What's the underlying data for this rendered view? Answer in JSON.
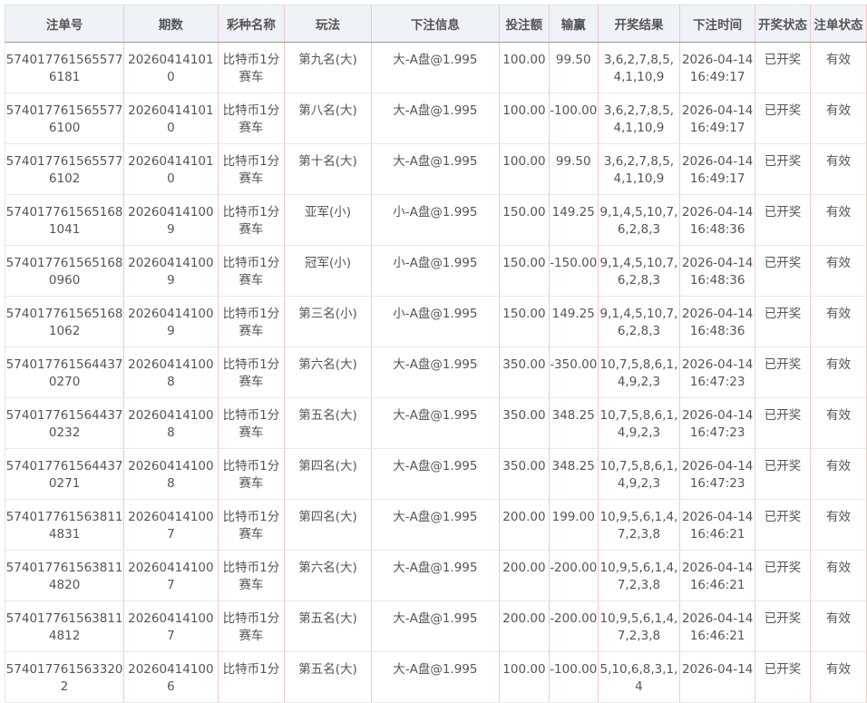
{
  "columns": [
    "注单号",
    "期数",
    "彩种名称",
    "玩法",
    "下注信息",
    "投注额",
    "输赢",
    "开奖结果",
    "下注时间",
    "开奖状态",
    "注单状态"
  ],
  "rows": [
    [
      "5740177615655776181",
      "202604141010",
      "比特币1分赛车",
      "第九名(大)",
      "大-A盘@1.995",
      "100.00",
      "99.50",
      "3,6,2,7,8,5,4,1,10,9",
      "2026-04-14 16:49:17",
      "已开奖",
      "有效"
    ],
    [
      "5740177615655776100",
      "202604141010",
      "比特币1分赛车",
      "第八名(大)",
      "大-A盘@1.995",
      "100.00",
      "-100.00",
      "3,6,2,7,8,5,4,1,10,9",
      "2026-04-14 16:49:17",
      "已开奖",
      "有效"
    ],
    [
      "5740177615655776102",
      "202604141010",
      "比特币1分赛车",
      "第十名(大)",
      "大-A盘@1.995",
      "100.00",
      "99.50",
      "3,6,2,7,8,5,4,1,10,9",
      "2026-04-14 16:49:17",
      "已开奖",
      "有效"
    ],
    [
      "5740177615651681041",
      "202604141009",
      "比特币1分赛车",
      "亚军(小)",
      "小-A盘@1.995",
      "150.00",
      "149.25",
      "9,1,4,5,10,7,6,2,8,3",
      "2026-04-14 16:48:36",
      "已开奖",
      "有效"
    ],
    [
      "5740177615651680960",
      "202604141009",
      "比特币1分赛车",
      "冠军(小)",
      "小-A盘@1.995",
      "150.00",
      "-150.00",
      "9,1,4,5,10,7,6,2,8,3",
      "2026-04-14 16:48:36",
      "已开奖",
      "有效"
    ],
    [
      "5740177615651681062",
      "202604141009",
      "比特币1分赛车",
      "第三名(小)",
      "小-A盘@1.995",
      "150.00",
      "149.25",
      "9,1,4,5,10,7,6,2,8,3",
      "2026-04-14 16:48:36",
      "已开奖",
      "有效"
    ],
    [
      "5740177615644370270",
      "202604141008",
      "比特币1分赛车",
      "第六名(大)",
      "大-A盘@1.995",
      "350.00",
      "-350.00",
      "10,7,5,8,6,1,4,9,2,3",
      "2026-04-14 16:47:23",
      "已开奖",
      "有效"
    ],
    [
      "5740177615644370232",
      "202604141008",
      "比特币1分赛车",
      "第五名(大)",
      "大-A盘@1.995",
      "350.00",
      "348.25",
      "10,7,5,8,6,1,4,9,2,3",
      "2026-04-14 16:47:23",
      "已开奖",
      "有效"
    ],
    [
      "5740177615644370271",
      "202604141008",
      "比特币1分赛车",
      "第四名(大)",
      "大-A盘@1.995",
      "350.00",
      "348.25",
      "10,7,5,8,6,1,4,9,2,3",
      "2026-04-14 16:47:23",
      "已开奖",
      "有效"
    ],
    [
      "5740177615638114831",
      "202604141007",
      "比特币1分赛车",
      "第四名(大)",
      "大-A盘@1.995",
      "200.00",
      "199.00",
      "10,9,5,6,1,4,7,2,3,8",
      "2026-04-14 16:46:21",
      "已开奖",
      "有效"
    ],
    [
      "5740177615638114820",
      "202604141007",
      "比特币1分赛车",
      "第六名(大)",
      "大-A盘@1.995",
      "200.00",
      "-200.00",
      "10,9,5,6,1,4,7,2,3,8",
      "2026-04-14 16:46:21",
      "已开奖",
      "有效"
    ],
    [
      "5740177615638114812",
      "202604141007",
      "比特币1分赛车",
      "第五名(大)",
      "大-A盘@1.995",
      "200.00",
      "-200.00",
      "10,9,5,6,1,4,7,2,3,8",
      "2026-04-14 16:46:21",
      "已开奖",
      "有效"
    ],
    [
      "5740177615633202",
      "202604141006",
      "比特币1分",
      "第五名(大)",
      "大-A盘@1.995",
      "100.00",
      "-100.00",
      "5,10,6,8,3,1,4",
      "2026-04-14",
      "已开奖",
      "有效"
    ]
  ]
}
